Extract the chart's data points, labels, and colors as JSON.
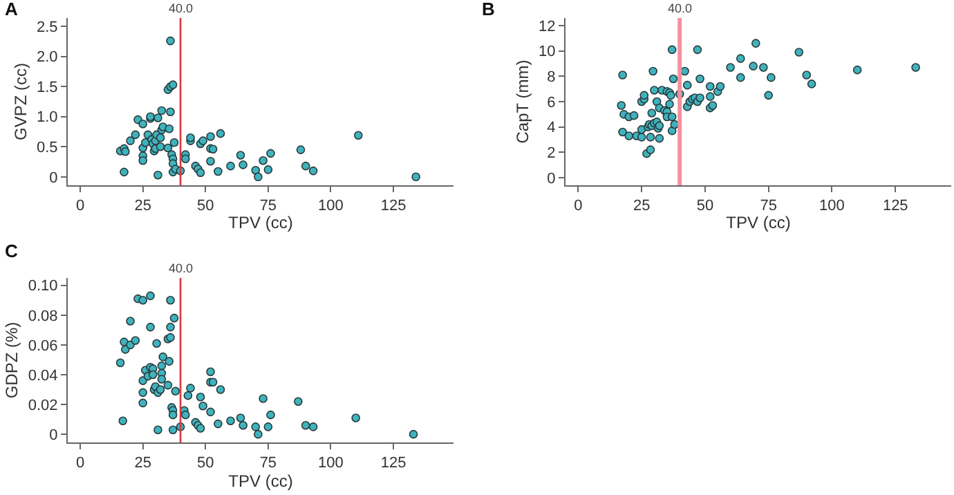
{
  "chart_data": [
    {
      "type": "scatter",
      "title": "A",
      "xlabel": "TPV (cc)",
      "ylabel": "GVPZ (cc)",
      "marker": "circle",
      "grid": false,
      "xlim": [
        -5,
        149
      ],
      "xticks": [
        0,
        25,
        50,
        75,
        100,
        125
      ],
      "ylim": [
        -0.14,
        2.64
      ],
      "yticks": [
        {
          "value": 0,
          "label": "0"
        },
        {
          "value": 0.5,
          "label": "0.5"
        },
        {
          "value": 1,
          "label": "1.0"
        },
        {
          "value": 1.5,
          "label": "1.5"
        },
        {
          "value": 2,
          "label": "2.0"
        },
        {
          "value": 2.5,
          "label": "2.5"
        }
      ],
      "ref_lines": [
        {
          "axis": "x",
          "value": 40,
          "label": "40.0",
          "color": "#d9363e"
        }
      ],
      "series": [
        {
          "color": "#3fb3bd",
          "x": [
            16,
            17.5,
            18,
            17.5,
            20,
            22,
            23,
            25,
            25,
            25,
            25,
            26,
            27,
            28,
            28,
            28.5,
            29,
            29.5,
            30,
            30,
            30.5,
            31,
            31,
            32,
            32,
            32.5,
            32.5,
            33,
            35,
            35,
            35.5,
            36,
            36,
            36,
            36.5,
            37,
            37,
            37,
            37,
            37.5,
            38,
            40,
            42,
            42,
            44,
            44,
            46,
            47,
            48,
            48,
            49,
            52,
            52,
            52,
            53,
            55,
            56,
            60,
            64,
            65,
            70,
            71,
            73,
            75,
            76,
            88,
            90,
            93,
            111,
            134
          ],
          "values": [
            0.43,
            0.47,
            0.42,
            0.08,
            0.6,
            0.7,
            0.95,
            0.88,
            0.48,
            0.35,
            0.27,
            0.57,
            0.7,
            0.97,
            1.0,
            0.62,
            0.55,
            0.43,
            0.6,
            0.47,
            0.7,
            0.98,
            0.03,
            0.65,
            0.5,
            1.1,
            0.78,
            0.83,
            0.48,
            1.45,
            0.8,
            2.26,
            1.5,
            1.08,
            0.37,
            1.53,
            0.3,
            0.22,
            0.08,
            0.57,
            0.13,
            0.1,
            0.37,
            0.3,
            0.6,
            0.65,
            0.18,
            0.13,
            0.55,
            0.07,
            0.6,
            0.67,
            0.47,
            0.26,
            0.46,
            0.09,
            0.72,
            0.18,
            0.36,
            0.2,
            0.11,
            0.0,
            0.27,
            0.12,
            0.39,
            0.45,
            0.18,
            0.1,
            0.69,
            0.0
          ]
        }
      ]
    },
    {
      "type": "scatter",
      "title": "B",
      "xlabel": "TPV (cc)",
      "ylabel": "CapT (mm)",
      "marker": "circle",
      "grid": false,
      "xlim": [
        -5,
        147
      ],
      "xticks": [
        0,
        25,
        50,
        75,
        100,
        125
      ],
      "ylim": [
        -0.6,
        12.6
      ],
      "yticks": [
        0,
        2,
        4,
        6,
        8,
        10,
        12
      ],
      "ref_lines": [
        {
          "axis": "x",
          "value": 40,
          "label": "40.0",
          "color": "#f3919e"
        }
      ],
      "series": [
        {
          "color": "#3fb3bd",
          "x": [
            17,
            17.5,
            17.5,
            18,
            20,
            20,
            22,
            23,
            25,
            25,
            25,
            26,
            26,
            27,
            27.5,
            28,
            28.5,
            28.5,
            29,
            29,
            29.5,
            30,
            30,
            31,
            31,
            31.5,
            32,
            32,
            32,
            33,
            34,
            35,
            35,
            35,
            36,
            36,
            36.5,
            37,
            37,
            37,
            37.5,
            38,
            40,
            42,
            43,
            43,
            44,
            45,
            46,
            47,
            47,
            48,
            48,
            52,
            52,
            52,
            53,
            55,
            56,
            60,
            64,
            64,
            69,
            70,
            73,
            75,
            76,
            87,
            90,
            92,
            110,
            133
          ],
          "values": [
            5.7,
            8.1,
            3.6,
            5.0,
            4.8,
            3.3,
            4.9,
            3.3,
            3.8,
            3.2,
            6.0,
            6.2,
            6.5,
            1.9,
            4.0,
            4.2,
            2.2,
            3.2,
            5.1,
            4.1,
            8.4,
            6.9,
            4.3,
            6.0,
            4.4,
            3.9,
            4.1,
            3.1,
            5.5,
            6.9,
            5.3,
            5.2,
            4.8,
            6.8,
            6.7,
            5.8,
            6.5,
            4.8,
            3.7,
            10.1,
            7.8,
            4.2,
            6.6,
            8.4,
            7.3,
            5.6,
            6.0,
            6.2,
            6.3,
            10.1,
            6.0,
            7.8,
            6.3,
            7.2,
            6.4,
            5.5,
            5.7,
            6.8,
            7.2,
            8.7,
            7.9,
            9.4,
            8.8,
            10.6,
            8.7,
            6.5,
            7.9,
            9.9,
            8.1,
            7.4,
            8.5,
            8.7
          ]
        }
      ]
    },
    {
      "type": "scatter",
      "title": "C",
      "xlabel": "TPV (cc)",
      "ylabel": "GDPZ (%)",
      "marker": "circle",
      "grid": false,
      "xlim": [
        -5,
        149
      ],
      "xticks": [
        0,
        25,
        50,
        75,
        100,
        125
      ],
      "ylim": [
        -0.0055,
        0.105
      ],
      "yticks": [
        {
          "value": 0,
          "label": "0"
        },
        {
          "value": 0.02,
          "label": "0.02"
        },
        {
          "value": 0.04,
          "label": "0.04"
        },
        {
          "value": 0.06,
          "label": "0.06"
        },
        {
          "value": 0.08,
          "label": "0.08"
        },
        {
          "value": 0.1,
          "label": "0.10"
        }
      ],
      "ref_lines": [
        {
          "axis": "x",
          "value": 40,
          "label": "40.0",
          "color": "#d9363e"
        }
      ],
      "series": [
        {
          "color": "#3fb3bd",
          "x": [
            16,
            17,
            17.5,
            18,
            20,
            20,
            22,
            23,
            25,
            25,
            25,
            25,
            26,
            27,
            28,
            28,
            28,
            29,
            29,
            29.5,
            30,
            30.5,
            31,
            31,
            32,
            32.5,
            32.5,
            32.5,
            33,
            35,
            35,
            35.5,
            36,
            36,
            36,
            36.5,
            37,
            37,
            37.5,
            37,
            38,
            40,
            41.5,
            42,
            43,
            44,
            46,
            47,
            48,
            48,
            49,
            52,
            52,
            52,
            53,
            55,
            56,
            60,
            64,
            65,
            70,
            71,
            73,
            75,
            76,
            87,
            90,
            93,
            110,
            133
          ],
          "values": [
            0.048,
            0.009,
            0.062,
            0.057,
            0.076,
            0.06,
            0.063,
            0.091,
            0.09,
            0.036,
            0.028,
            0.021,
            0.043,
            0.039,
            0.093,
            0.045,
            0.072,
            0.044,
            0.04,
            0.03,
            0.032,
            0.061,
            0.028,
            0.003,
            0.03,
            0.046,
            0.041,
            0.037,
            0.052,
            0.033,
            0.064,
            0.049,
            0.065,
            0.09,
            0.072,
            0.018,
            0.016,
            0.013,
            0.078,
            0.003,
            0.029,
            0.005,
            0.016,
            0.013,
            0.026,
            0.031,
            0.008,
            0.006,
            0.025,
            0.004,
            0.019,
            0.042,
            0.035,
            0.015,
            0.035,
            0.007,
            0.03,
            0.009,
            0.011,
            0.006,
            0.005,
            0.0,
            0.024,
            0.005,
            0.013,
            0.022,
            0.006,
            0.005,
            0.011,
            0.0
          ]
        }
      ]
    }
  ]
}
